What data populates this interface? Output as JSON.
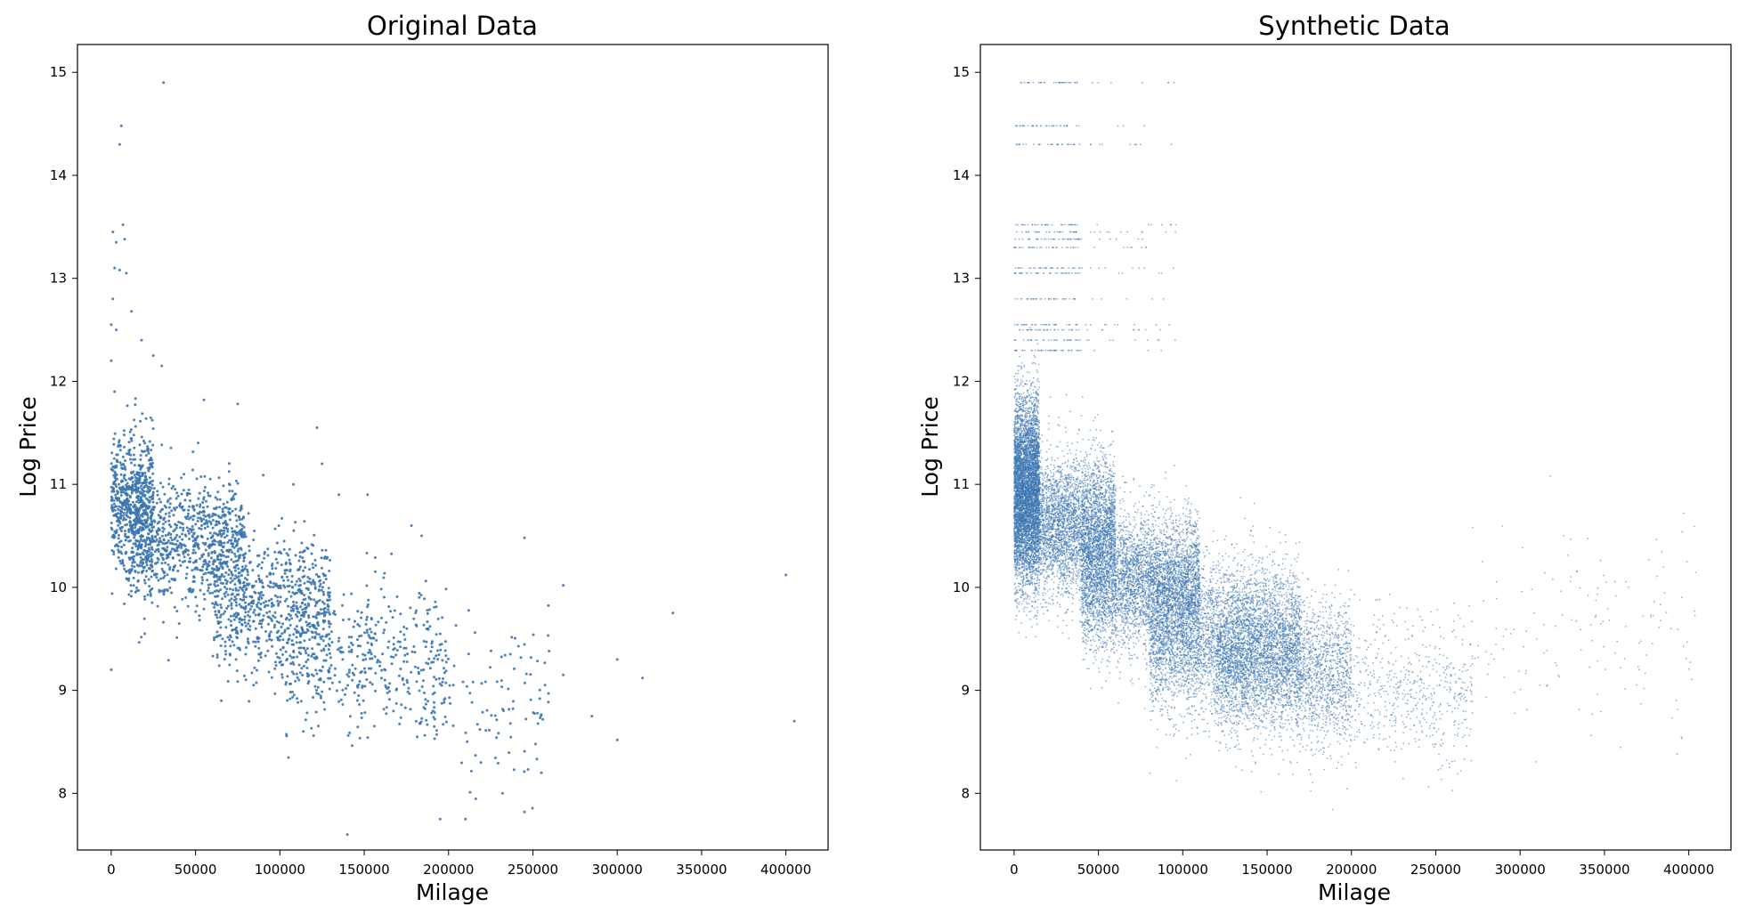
{
  "colors": {
    "point": "#3a75b0",
    "axis": "#000000",
    "background": "#ffffff"
  },
  "chart_data": [
    {
      "type": "scatter",
      "title": "Original Data",
      "xlabel": "Milage",
      "ylabel": "Log Price",
      "xlim": [
        -20000,
        425000
      ],
      "ylim": [
        7.45,
        15.27
      ],
      "xticks": [
        0,
        50000,
        100000,
        150000,
        200000,
        250000,
        300000,
        350000,
        400000
      ],
      "yticks": [
        8,
        9,
        10,
        11,
        12,
        13,
        14,
        15
      ],
      "grid": false,
      "legend": "none",
      "points": [
        [
          31000,
          14.9
        ],
        [
          6000,
          14.48
        ],
        [
          5000,
          14.3
        ],
        [
          7000,
          13.52
        ],
        [
          1000,
          13.45
        ],
        [
          8000,
          13.38
        ],
        [
          3000,
          13.35
        ],
        [
          2000,
          13.1
        ],
        [
          5000,
          13.08
        ],
        [
          9000,
          13.05
        ],
        [
          1000,
          12.8
        ],
        [
          0,
          12.55
        ],
        [
          3000,
          12.5
        ],
        [
          12000,
          12.68
        ],
        [
          18000,
          12.4
        ],
        [
          25000,
          12.25
        ],
        [
          30000,
          12.15
        ],
        [
          0,
          12.2
        ],
        [
          2000,
          11.9
        ],
        [
          55000,
          11.82
        ],
        [
          75000,
          11.78
        ],
        [
          122000,
          11.55
        ],
        [
          125000,
          11.2
        ],
        [
          108000,
          11.0
        ],
        [
          135000,
          10.9
        ],
        [
          152000,
          10.9
        ],
        [
          178000,
          10.6
        ],
        [
          184000,
          10.5
        ],
        [
          245000,
          10.48
        ],
        [
          268000,
          10.02
        ],
        [
          400000,
          10.12
        ],
        [
          333000,
          9.75
        ],
        [
          300000,
          9.3
        ],
        [
          315000,
          9.12
        ],
        [
          300000,
          8.52
        ],
        [
          285000,
          8.75
        ],
        [
          268000,
          9.15
        ],
        [
          255000,
          8.2
        ],
        [
          232000,
          8.0
        ],
        [
          245000,
          7.82
        ],
        [
          210000,
          7.75
        ],
        [
          195000,
          7.75
        ],
        [
          140000,
          7.6
        ],
        [
          405000,
          8.7
        ],
        [
          0,
          9.2
        ]
      ],
      "clusters": [
        {
          "n": 600,
          "x_min": 0,
          "x_max": 25000,
          "y_center": 10.85,
          "y_spread": 0.55
        },
        {
          "n": 900,
          "x_min": 10000,
          "x_max": 80000,
          "y_center": 10.45,
          "y_spread": 0.5
        },
        {
          "n": 700,
          "x_min": 60000,
          "x_max": 130000,
          "y_center": 9.85,
          "y_spread": 0.55
        },
        {
          "n": 450,
          "x_min": 100000,
          "x_max": 200000,
          "y_center": 9.3,
          "y_spread": 0.6
        },
        {
          "n": 120,
          "x_min": 180000,
          "x_max": 260000,
          "y_center": 8.9,
          "y_spread": 0.6
        }
      ]
    },
    {
      "type": "scatter",
      "title": "Synthetic Data",
      "xlabel": "Milage",
      "ylabel": "Log Price",
      "xlim": [
        -20000,
        425000
      ],
      "ylim": [
        7.45,
        15.27
      ],
      "xticks": [
        0,
        50000,
        100000,
        150000,
        200000,
        250000,
        300000,
        350000,
        400000
      ],
      "yticks": [
        8,
        9,
        10,
        11,
        12,
        13,
        14,
        15
      ],
      "grid": false,
      "legend": "none",
      "point_levels": [
        14.9,
        14.48,
        14.3,
        13.52,
        13.45,
        13.38,
        13.3,
        13.1,
        13.05,
        12.8,
        12.55,
        12.5,
        12.4,
        12.3
      ],
      "clusters": [
        {
          "n": 4500,
          "x_min": 0,
          "x_max": 15000,
          "y_center": 11.0,
          "y_spread": 0.7
        },
        {
          "n": 5000,
          "x_min": 0,
          "x_max": 60000,
          "y_center": 10.6,
          "y_spread": 0.55
        },
        {
          "n": 5000,
          "x_min": 40000,
          "x_max": 110000,
          "y_center": 10.05,
          "y_spread": 0.55
        },
        {
          "n": 5000,
          "x_min": 80000,
          "x_max": 170000,
          "y_center": 9.5,
          "y_spread": 0.6
        },
        {
          "n": 2500,
          "x_min": 120000,
          "x_max": 200000,
          "y_center": 9.2,
          "y_spread": 0.55
        },
        {
          "n": 800,
          "x_min": 170000,
          "x_max": 272000,
          "y_center": 9.0,
          "y_spread": 0.6
        },
        {
          "n": 150,
          "x_min": 270000,
          "x_max": 405000,
          "y_center": 9.6,
          "y_spread": 0.8
        }
      ]
    }
  ]
}
